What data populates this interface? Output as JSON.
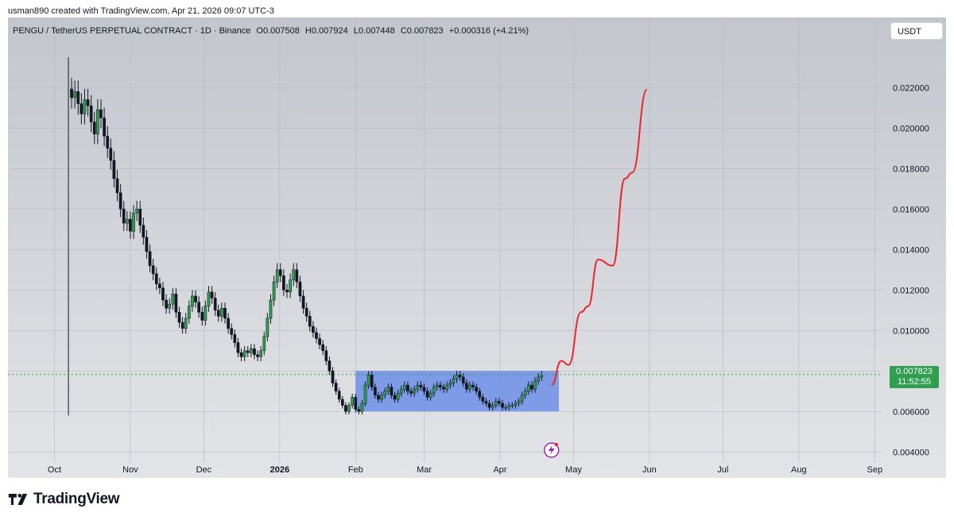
{
  "header": {
    "attribution": "usman890 created with TradingView.com, Apr 21, 2026 09:07 UTC-3"
  },
  "legend": {
    "symbol": "PENGU / TetherUS PERPETUAL CONTRACT · 1D · Binance",
    "open": "O0.007508",
    "high": "H0.007924",
    "low": "L0.007448",
    "close": "C0.007823",
    "change": "+0.000316 (+4.21%)"
  },
  "currency_button": "USDT",
  "price_tag": {
    "price": "0.007823",
    "countdown": "11:52:55"
  },
  "footer": {
    "brand": "TradingView"
  },
  "colors": {
    "up": "#2e9e4f",
    "down": "#131722",
    "projection": "#e8272f",
    "range_box": "#6d8fe8",
    "price_line": "#2e9e4f"
  },
  "chart_data": {
    "type": "candlestick",
    "ylim": [
      0.0035,
      0.0235
    ],
    "y_ticks": [
      "0.004000",
      "0.006000",
      "0.008000",
      "0.010000",
      "0.012000",
      "0.014000",
      "0.016000",
      "0.018000",
      "0.020000",
      "0.022000"
    ],
    "x_ticks": [
      "Oct",
      "Nov",
      "Dec",
      "2026",
      "Feb",
      "Mar",
      "Apr",
      "May",
      "Jun",
      "Jul",
      "Aug",
      "Sep"
    ],
    "close_series": [
      0.0215,
      0.0218,
      0.0212,
      0.0207,
      0.0214,
      0.0211,
      0.0203,
      0.0197,
      0.0209,
      0.0205,
      0.0196,
      0.019,
      0.0184,
      0.0175,
      0.0168,
      0.016,
      0.0153,
      0.0155,
      0.0149,
      0.0158,
      0.016,
      0.0152,
      0.0146,
      0.0139,
      0.0132,
      0.0128,
      0.0123,
      0.0121,
      0.0115,
      0.0111,
      0.0113,
      0.0118,
      0.0109,
      0.0104,
      0.0101,
      0.0106,
      0.0112,
      0.0117,
      0.0114,
      0.0109,
      0.0105,
      0.0112,
      0.0119,
      0.0116,
      0.011,
      0.0107,
      0.0111,
      0.0106,
      0.0101,
      0.0098,
      0.0094,
      0.0089,
      0.0087,
      0.009,
      0.0089,
      0.0091,
      0.0088,
      0.0087,
      0.009,
      0.0097,
      0.0106,
      0.0115,
      0.0124,
      0.013,
      0.0127,
      0.012,
      0.0119,
      0.0125,
      0.013,
      0.0124,
      0.0117,
      0.0111,
      0.0107,
      0.0102,
      0.0099,
      0.0096,
      0.0093,
      0.009,
      0.0085,
      0.008,
      0.0074,
      0.007,
      0.0066,
      0.0063,
      0.006,
      0.0063,
      0.0067,
      0.0061,
      0.006,
      0.0064,
      0.0073,
      0.0078,
      0.0072,
      0.0068,
      0.0066,
      0.0068,
      0.007,
      0.0072,
      0.0068,
      0.0066,
      0.0069,
      0.0071,
      0.0073,
      0.007,
      0.0069,
      0.0071,
      0.0073,
      0.0072,
      0.007,
      0.0067,
      0.0069,
      0.0072,
      0.0073,
      0.0072,
      0.0071,
      0.0073,
      0.0074,
      0.0076,
      0.0078,
      0.0077,
      0.0074,
      0.0071,
      0.0073,
      0.0072,
      0.007,
      0.0067,
      0.0065,
      0.0064,
      0.0062,
      0.0063,
      0.0065,
      0.0064,
      0.0062,
      0.0062,
      0.0063,
      0.0063,
      0.0064,
      0.0065,
      0.0068,
      0.007,
      0.0073,
      0.0071,
      0.0075,
      0.0077,
      0.0078
    ],
    "series_start": "2025-10-08",
    "range_box": {
      "x_start": "2026-02-01",
      "x_end": "2026-04-25",
      "y_low": 0.006,
      "y_high": 0.008
    },
    "current_price": 0.007823,
    "projection_path": [
      [
        "2026-04-22",
        0.0073
      ],
      [
        "2026-04-26",
        0.0085
      ],
      [
        "2026-04-29",
        0.0083
      ],
      [
        "2026-05-04",
        0.0109
      ],
      [
        "2026-05-07",
        0.0112
      ],
      [
        "2026-05-11",
        0.0135
      ],
      [
        "2026-05-17",
        0.0132
      ],
      [
        "2026-05-22",
        0.0175
      ],
      [
        "2026-05-25",
        0.0178
      ],
      [
        "2026-05-31",
        0.0219
      ]
    ]
  }
}
